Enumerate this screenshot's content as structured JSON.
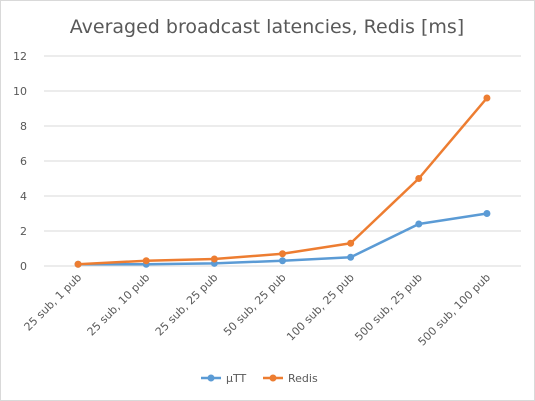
{
  "chart_data": {
    "type": "line",
    "title": "Averaged broadcast latencies, Redis [ms]",
    "xlabel": "",
    "ylabel": "",
    "categories": [
      "25 sub, 1 pub",
      "25 sub, 10 pub",
      "25 sub, 25 pub",
      "50 sub, 25 pub",
      "100 sub, 25 pub",
      "500 sub, 25 pub",
      "500 sub, 100 pub"
    ],
    "ylim": [
      0,
      12
    ],
    "yticks": [
      0,
      2,
      4,
      6,
      8,
      10,
      12
    ],
    "grid": true,
    "legend_position": "bottom",
    "series": [
      {
        "name": "µTT",
        "color": "#5b9bd5",
        "values": [
          0.1,
          0.1,
          0.15,
          0.3,
          0.5,
          2.4,
          3.0
        ]
      },
      {
        "name": "Redis",
        "color": "#ed7d31",
        "values": [
          0.1,
          0.3,
          0.4,
          0.7,
          1.3,
          5.0,
          9.6
        ]
      }
    ]
  }
}
